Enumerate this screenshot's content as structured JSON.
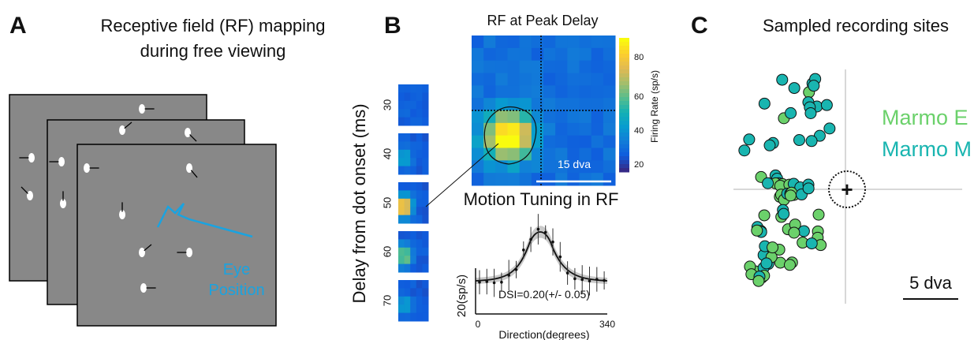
{
  "panel_a": {
    "letter": "A",
    "title": "Receptive field (RF) mapping",
    "subtitle": "during free viewing",
    "annotation": [
      "Eye",
      "Position"
    ]
  },
  "panel_b": {
    "letter": "B",
    "heatmap_title": "RF at Peak Delay",
    "colorbar_label": "Firing Rate (sp/s)",
    "colorbar_ticks": [
      80,
      60,
      40,
      20
    ],
    "scale_bar": "15 dva",
    "delay_axis_label": "Delay from dot onset (ms)",
    "delays": [
      30,
      40,
      50,
      60,
      70
    ],
    "tuning_title": "Motion Tuning in RF",
    "tuning_ylabel": "20(sp/s)",
    "tuning_xlabel": "Direction(degrees)",
    "tuning_xticks": [
      0,
      340
    ],
    "dsi": "DSI=0.20(+/- 0.05)"
  },
  "panel_c": {
    "letter": "C",
    "title": "Sampled recording sites",
    "legend": [
      "Marmo E",
      "Marmo M"
    ],
    "scale_bar": "5 dva"
  }
}
